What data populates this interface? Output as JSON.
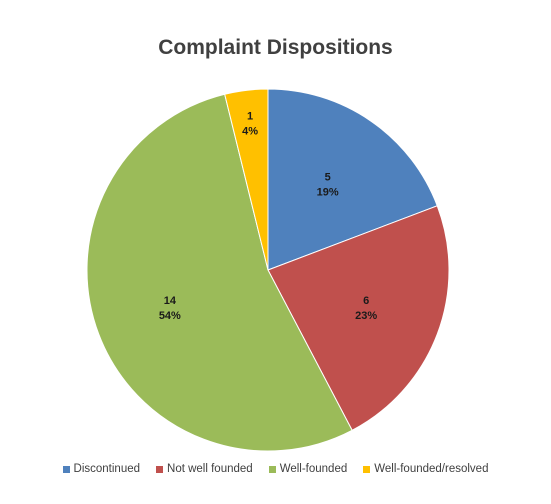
{
  "chart_data": {
    "type": "pie",
    "title": "Complaint Dispositions",
    "categories": [
      "Discontinued",
      "Not well founded",
      "Well-founded",
      "Well-founded/resolved"
    ],
    "values": [
      5,
      6,
      14,
      1
    ],
    "percent_labels": [
      "19%",
      "23%",
      "54%",
      "4%"
    ],
    "colors": [
      "#4f81bd",
      "#c0504d",
      "#9bbb59",
      "#ffc000"
    ],
    "legend_position": "bottom",
    "start_angle": "12 o'clock",
    "direction": "clockwise"
  }
}
